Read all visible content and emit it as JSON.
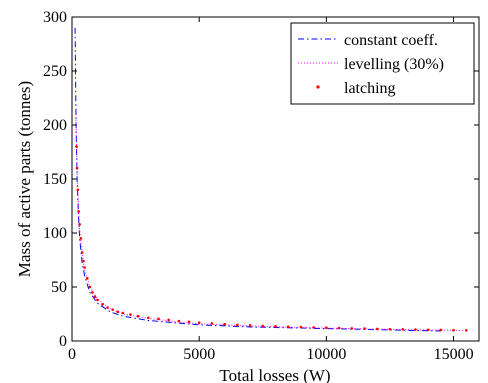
{
  "chart_data": {
    "type": "line",
    "title": "",
    "xlabel": "Total losses (W)",
    "ylabel": "Mass of active parts (tonnes)",
    "xlim": [
      0,
      16000
    ],
    "ylim": [
      0,
      300
    ],
    "xticks": [
      0,
      5000,
      10000,
      15000
    ],
    "yticks": [
      0,
      50,
      100,
      150,
      200,
      250,
      300
    ],
    "grid": false,
    "legend_position": "top-right",
    "series": [
      {
        "name": "constant coeff.",
        "style": "dash-dot",
        "color": "#0000ff",
        "x": [
          120,
          160,
          200,
          250,
          300,
          400,
          500,
          700,
          1000,
          1500,
          2000,
          3000,
          4000,
          5000,
          6000,
          7000,
          8000,
          9000,
          10000,
          11000,
          12000,
          13000,
          14000,
          14500
        ],
        "y": [
          290,
          200,
          150,
          118,
          95,
          72,
          60,
          45,
          35,
          27,
          23,
          19,
          17,
          15,
          14,
          13,
          12.5,
          12,
          11.5,
          11,
          10.5,
          10,
          9.5,
          9.3
        ]
      },
      {
        "name": "levelling (30%)",
        "style": "dotted",
        "color": "#ff00ff",
        "x": [
          150,
          200,
          250,
          300,
          400,
          500,
          700,
          1000,
          1500,
          2000,
          3000,
          4000,
          5000,
          6000,
          7000,
          8000,
          9000,
          10000,
          11000,
          12000,
          13000,
          14000,
          15000,
          15500
        ],
        "y": [
          210,
          160,
          125,
          103,
          80,
          66,
          50,
          39,
          30,
          25,
          21,
          18,
          16,
          15,
          14,
          13.2,
          12.6,
          12,
          11.5,
          11,
          10.6,
          10.2,
          9.8,
          9.6
        ]
      },
      {
        "name": "latching",
        "style": "dots",
        "color": "#ff0000",
        "x": [
          180,
          200,
          230,
          260,
          300,
          350,
          400,
          450,
          500,
          600,
          700,
          800,
          900,
          1000,
          1200,
          1400,
          1600,
          1800,
          2000,
          2300,
          2600,
          3000,
          3400,
          3800,
          4200,
          4600,
          5000,
          5500,
          6000,
          6500,
          7000,
          7500,
          8000,
          8500,
          9000,
          9500,
          10000,
          10500,
          11000,
          11500,
          12000,
          12500,
          13000,
          13500,
          14000,
          14500,
          15000,
          15500
        ],
        "y": [
          180,
          160,
          140,
          120,
          108,
          95,
          82,
          74,
          68,
          58,
          50,
          45,
          41,
          38,
          34,
          31,
          29,
          27,
          26,
          24.5,
          23,
          21.5,
          20.5,
          19.5,
          18.5,
          17.8,
          17,
          16.3,
          15.6,
          15,
          14.5,
          14,
          13.6,
          13.2,
          12.9,
          12.6,
          12.3,
          12,
          11.7,
          11.5,
          11.2,
          11,
          10.8,
          10.6,
          10.4,
          10.2,
          10,
          9.9
        ]
      }
    ]
  }
}
